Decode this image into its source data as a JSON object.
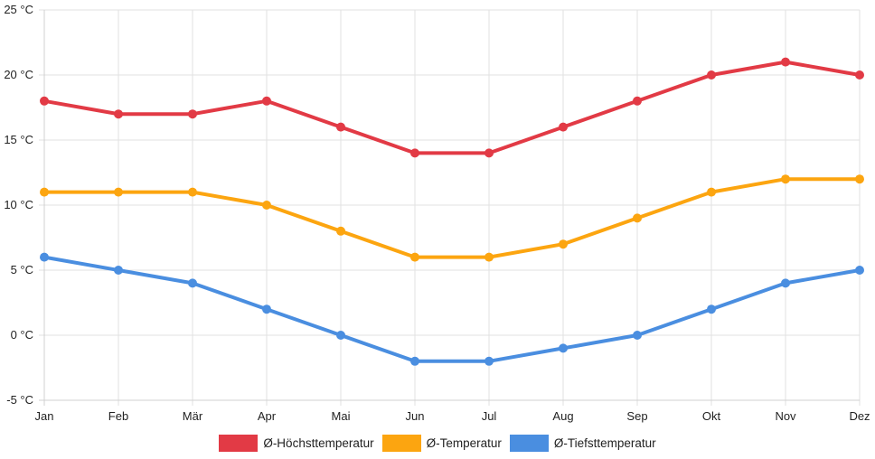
{
  "chart_data": {
    "type": "line",
    "title": "",
    "xlabel": "",
    "ylabel": "",
    "categories": [
      "Jan",
      "Feb",
      "Mär",
      "Apr",
      "Mai",
      "Jun",
      "Jul",
      "Aug",
      "Sep",
      "Okt",
      "Nov",
      "Dez"
    ],
    "ylim": [
      -5,
      25
    ],
    "yticks": [
      25,
      20,
      15,
      10,
      5,
      0,
      -5
    ],
    "ytick_labels": [
      "25 °C",
      "20 °C",
      "15 °C",
      "10 °C",
      "5 °C",
      "0 °C",
      "-5 °C"
    ],
    "grid": true,
    "legend_position": "bottom",
    "series": [
      {
        "name": "Ø-Höchsttemperatur",
        "color": "#e23a45",
        "values": [
          18,
          17,
          17,
          18,
          16,
          14,
          14,
          16,
          18,
          20,
          21,
          20
        ]
      },
      {
        "name": "Ø-Temperatur",
        "color": "#fca510",
        "values": [
          11,
          11,
          11,
          10,
          8,
          6,
          6,
          7,
          9,
          11,
          12,
          12
        ]
      },
      {
        "name": "Ø-Tiefsttemperatur",
        "color": "#4a8ee0",
        "values": [
          6,
          5,
          4,
          2,
          0,
          -2,
          -2,
          -1,
          0,
          2,
          4,
          5
        ]
      }
    ]
  }
}
